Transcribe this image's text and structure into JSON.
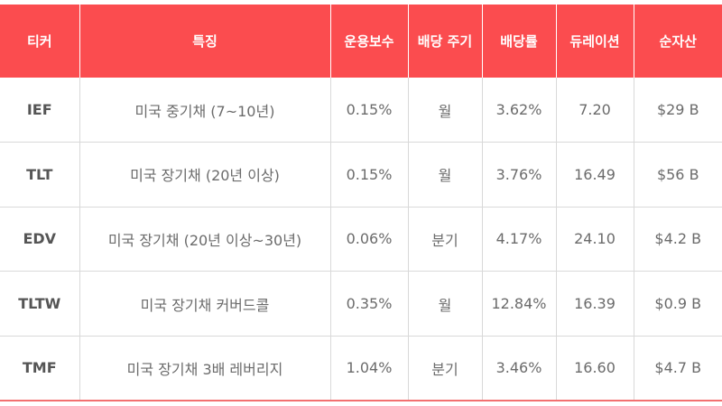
{
  "table": {
    "headers": [
      "티커",
      "특징",
      "운용보수",
      "배당 주기",
      "배당률",
      "듀레이션",
      "순자산"
    ],
    "rows": [
      [
        "IEF",
        "미국 중기채 (7~10년)",
        "0.15%",
        "월",
        "3.62%",
        "7.20",
        "$29 B"
      ],
      [
        "TLT",
        "미국 장기채 (20년 이상)",
        "0.15%",
        "월",
        "3.76%",
        "16.49",
        "$56 B"
      ],
      [
        "EDV",
        "미국 장기채 (20년 이상~30년)",
        "0.06%",
        "분기",
        "4.17%",
        "24.10",
        "$4.2 B"
      ],
      [
        "TLTW",
        "미국 장기채 커버드콜",
        "0.35%",
        "월",
        "12.84%",
        "16.39",
        "$0.9 B"
      ],
      [
        "TMF",
        "미국 장기채 3배 레버리지",
        "1.04%",
        "분기",
        "3.46%",
        "16.60",
        "$4.7 B"
      ]
    ]
  },
  "colors": {
    "header_bg": "#fb4c4f",
    "header_text": "#ffffff",
    "cell_text": "#6b6b6b",
    "grid": "#d9d9d9",
    "bottom_rule": "#f27070"
  }
}
